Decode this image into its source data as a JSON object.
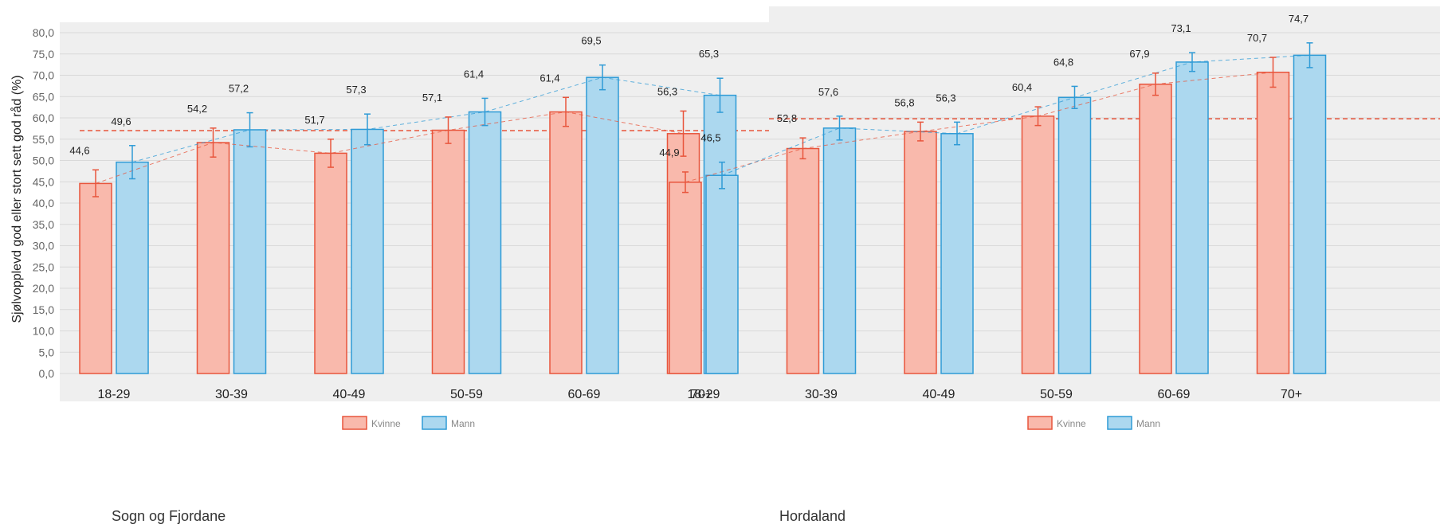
{
  "chart_data": [
    {
      "type": "bar",
      "title": "Sogn og Fjordane",
      "ylabel": "Sjølvopplevd god eller stort sett god råd (%)",
      "ylim": [
        0,
        80
      ],
      "ytick_labels": [
        "0,0",
        "5,0",
        "10,0",
        "15,0",
        "20,0",
        "25,0",
        "30,0",
        "35,0",
        "40,0",
        "45,0",
        "50,0",
        "55,0",
        "60,0",
        "65,0",
        "70,0",
        "75,0",
        "80,0"
      ],
      "categories": [
        "18-29",
        "30-39",
        "40-49",
        "50-59",
        "60-69",
        "70+"
      ],
      "series": [
        {
          "name": "Kvinne",
          "color": "#f9b9ac",
          "edge": "#e8553c",
          "values": [
            44.6,
            54.2,
            51.7,
            57.1,
            61.4,
            56.3
          ],
          "labels": [
            "44,6",
            "54,2",
            "51,7",
            "57,1",
            "61,4",
            "56,3"
          ],
          "err_low": [
            41.5,
            50.8,
            48.4,
            54.0,
            58.0,
            51.0
          ],
          "err_high": [
            47.8,
            57.6,
            55.0,
            60.2,
            64.8,
            61.6
          ],
          "reference": 57.0
        },
        {
          "name": "Mann",
          "color": "#acd8ef",
          "edge": "#2f9bd6",
          "values": [
            49.6,
            57.2,
            57.3,
            61.4,
            69.5,
            65.3
          ],
          "labels": [
            "49,6",
            "57,2",
            "57,3",
            "61,4",
            "69,5",
            "65,3"
          ],
          "err_low": [
            45.7,
            53.2,
            53.7,
            58.2,
            66.6,
            61.3
          ],
          "err_high": [
            53.5,
            61.2,
            60.9,
            64.6,
            72.4,
            69.3
          ],
          "reference": null
        }
      ],
      "legend": "bottom"
    },
    {
      "type": "bar",
      "title": "Hordaland",
      "ylim": [
        0,
        80
      ],
      "categories": [
        "18-29",
        "30-39",
        "40-49",
        "50-59",
        "60-69",
        "70+"
      ],
      "series": [
        {
          "name": "Kvinne",
          "color": "#f9b9ac",
          "edge": "#e8553c",
          "values": [
            44.9,
            52.8,
            56.8,
            60.4,
            67.9,
            70.7
          ],
          "labels": [
            "44,9",
            "52,8",
            "56,8",
            "60,4",
            "67,9",
            "70,7"
          ],
          "err_low": [
            42.5,
            50.4,
            54.6,
            58.2,
            65.3,
            67.2
          ],
          "err_high": [
            47.3,
            55.3,
            59.0,
            62.6,
            70.5,
            74.2
          ],
          "reference": 59.8
        },
        {
          "name": "Mann",
          "color": "#acd8ef",
          "edge": "#2f9bd6",
          "values": [
            46.5,
            57.6,
            56.3,
            64.8,
            73.1,
            74.7
          ],
          "labels": [
            "46,5",
            "57,6",
            "56,3",
            "64,8",
            "73,1",
            "74,7"
          ],
          "err_low": [
            43.4,
            54.8,
            53.7,
            62.2,
            70.9,
            71.8
          ],
          "err_high": [
            49.6,
            60.4,
            59.0,
            67.4,
            75.3,
            77.6
          ],
          "reference": null
        }
      ],
      "legend": "bottom"
    }
  ]
}
